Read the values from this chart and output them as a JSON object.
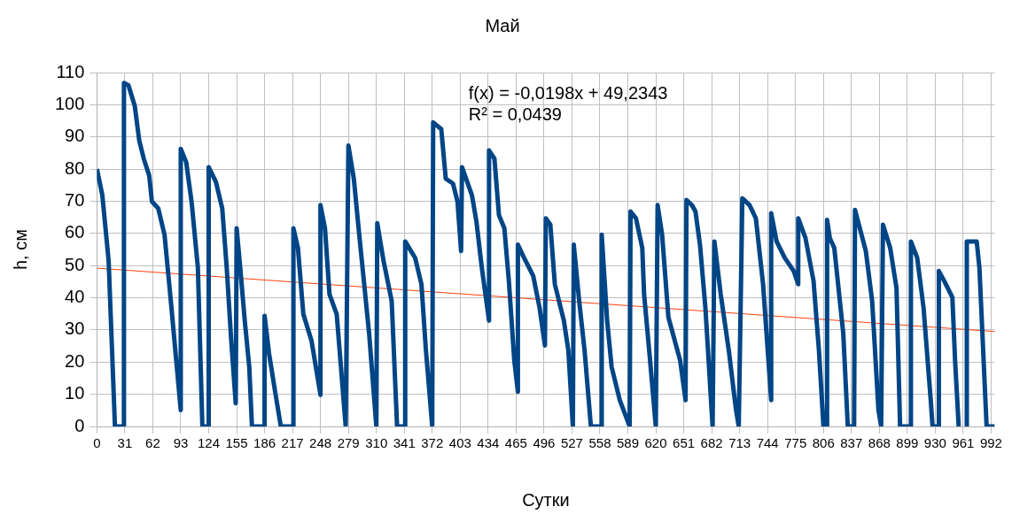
{
  "chart_data": {
    "type": "line",
    "title": "Май",
    "xlabel": "Сутки",
    "ylabel": "h, см",
    "xlim": [
      0,
      996
    ],
    "xticks": [
      0,
      31,
      62,
      93,
      124,
      155,
      186,
      217,
      248,
      279,
      310,
      341,
      372,
      403,
      434,
      465,
      496,
      527,
      558,
      589,
      620,
      651,
      682,
      713,
      744,
      775,
      806,
      837,
      868,
      899,
      930,
      961,
      992
    ],
    "ylim": [
      0,
      110
    ],
    "yticks": [
      0,
      10,
      20,
      30,
      40,
      50,
      60,
      70,
      80,
      90,
      100,
      110
    ],
    "grid": true,
    "legend": false,
    "marker": "none",
    "annotations": [
      "f(x) = -0,0198x + 49,2343",
      "R² = 0,0439"
    ],
    "series": [
      {
        "color": "#004586",
        "x": [
          0,
          6,
          13,
          20,
          30,
          30,
          35,
          42,
          47,
          52,
          58,
          61,
          68,
          75,
          82,
          87,
          93,
          93,
          99,
          105,
          112,
          117,
          124,
          124,
          132,
          139,
          144,
          149,
          154,
          155,
          159,
          164,
          169,
          172,
          186,
          186,
          191,
          198,
          204,
          218,
          218,
          223,
          229,
          238,
          248,
          248,
          253,
          258,
          266,
          276,
          279,
          285,
          291,
          302,
          310,
          311,
          318,
          327,
          333,
          342,
          342,
          353,
          360,
          365,
          372,
          373,
          382,
          387,
          395,
          400,
          404,
          405,
          416,
          421,
          427,
          435,
          435,
          441,
          446,
          452,
          457,
          463,
          467,
          467,
          473,
          484,
          491,
          497,
          498,
          503,
          508,
          518,
          523,
          528,
          529,
          535,
          541,
          548,
          560,
          560,
          566,
          571,
          580,
          591,
          592,
          598,
          605,
          607,
          613,
          620,
          622,
          627,
          634,
          642,
          647,
          653,
          654,
          660,
          664,
          669,
          675,
          683,
          685,
          692,
          701,
          709,
          712,
          716,
          724,
          731,
          739,
          748,
          748,
          754,
          763,
          773,
          778,
          778,
          786,
          795,
          801,
          806,
          810,
          810,
          813,
          818,
          828,
          833,
          840,
          841,
          853,
          860,
          867,
          870,
          872,
          880,
          887,
          891,
          903,
          903,
          910,
          917,
          925,
          927,
          934,
          934,
          940,
          949,
          952,
          956,
          960,
          965,
          965,
          976,
          979,
          987,
          996
        ],
        "values": [
          80,
          71.9,
          51.5,
          0,
          0,
          106.8,
          106,
          99.6,
          88.8,
          83.2,
          78,
          69.9,
          67.8,
          59.6,
          39,
          23.6,
          5.1,
          86.3,
          82.2,
          69.9,
          49.3,
          0,
          0,
          80.6,
          76,
          67.8,
          49.3,
          26.7,
          7.2,
          61.6,
          49.3,
          32.9,
          18.5,
          0,
          0,
          34.4,
          22.6,
          10.3,
          0,
          0,
          61.6,
          55.5,
          34.9,
          26.7,
          9.8,
          68.8,
          61.6,
          41.1,
          34.9,
          0,
          87.3,
          77,
          59.6,
          28.8,
          0,
          63.2,
          51.4,
          39,
          0,
          0,
          57.5,
          52.4,
          44.2,
          23.6,
          0,
          94.5,
          92.4,
          77,
          75.5,
          69.9,
          54.5,
          80.6,
          71.9,
          63.7,
          49.3,
          32.9,
          85.8,
          83.2,
          65.7,
          61.6,
          45.2,
          20.5,
          10.8,
          56.5,
          52.9,
          46.8,
          37,
          25.2,
          64.7,
          62.7,
          44.2,
          32.9,
          23.6,
          0,
          56.5,
          39,
          23.6,
          0,
          0,
          59.6,
          32.9,
          18.5,
          8.2,
          0,
          66.8,
          64.7,
          55.5,
          41.1,
          22.6,
          0,
          68.8,
          59.6,
          33.9,
          25.7,
          20.5,
          8.2,
          70.4,
          68.8,
          66.8,
          56.5,
          37,
          0,
          57.5,
          41.1,
          23.6,
          5.1,
          0,
          70.9,
          68.8,
          64.7,
          44.2,
          8.2,
          66.3,
          57.5,
          52.4,
          48.3,
          44.2,
          64.7,
          58.6,
          45.2,
          23.6,
          0,
          0,
          64.2,
          58.6,
          55.5,
          28.8,
          0,
          0,
          67.3,
          54.5,
          39,
          5.1,
          0,
          62.7,
          55.5,
          43.1,
          0,
          0,
          57.5,
          52.4,
          37,
          8.2,
          0,
          0,
          48.3,
          45.2,
          40.1,
          20.5,
          0,
          null,
          0,
          57.5,
          57.5,
          49.3,
          0,
          0
        ]
      },
      {
        "color": "#ff420e",
        "x": [
          0,
          996
        ],
        "values": [
          49.2,
          29.5
        ]
      }
    ]
  }
}
